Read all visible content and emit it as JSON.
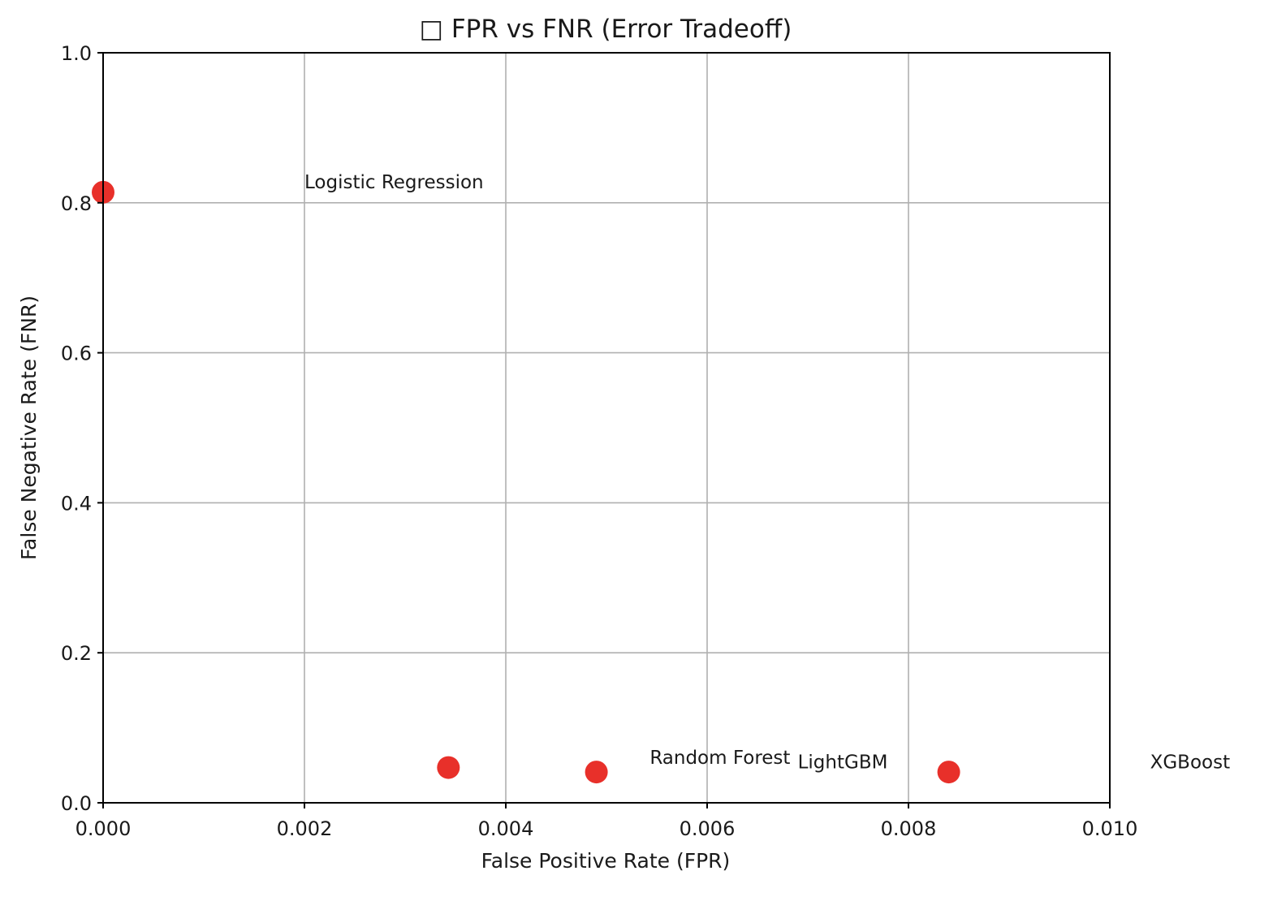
{
  "chart_data": {
    "type": "scatter",
    "title": "□ FPR vs FNR (Error Tradeoff)",
    "xlabel": "False Positive Rate (FPR)",
    "ylabel": "False Negative Rate (FNR)",
    "xlim": [
      0.0,
      0.01
    ],
    "ylim": [
      0.0,
      1.0
    ],
    "xticks": [
      "0.000",
      "0.002",
      "0.004",
      "0.006",
      "0.008",
      "0.010"
    ],
    "yticks": [
      "0.0",
      "0.2",
      "0.4",
      "0.6",
      "0.8",
      "1.0"
    ],
    "grid": true,
    "point_color": "#e8302a",
    "points": [
      {
        "label": "Logistic Regression",
        "x": 0.0,
        "y": 0.814
      },
      {
        "label": "Random Forest",
        "x": 0.00343,
        "y": 0.047
      },
      {
        "label": "LightGBM",
        "x": 0.0049,
        "y": 0.041
      },
      {
        "label": "XGBoost",
        "x": 0.0084,
        "y": 0.041
      }
    ]
  }
}
